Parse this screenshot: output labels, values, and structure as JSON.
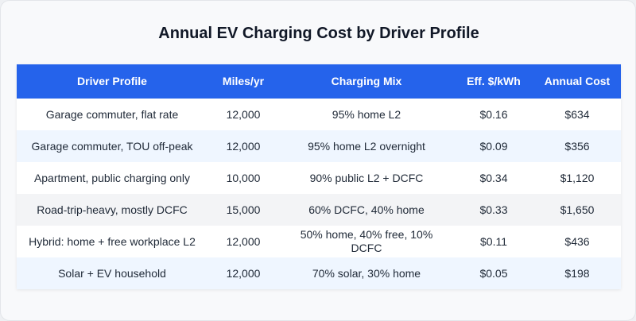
{
  "title": "Annual EV Charging Cost by Driver Profile",
  "colors": {
    "header": "#2563eb",
    "row_alt": "#eff6ff",
    "row_highlight": "#f3f4f6"
  },
  "chart_data": {
    "type": "table",
    "title": "Annual EV Charging Cost by Driver Profile",
    "columns": [
      "Driver Profile",
      "Miles/yr",
      "Charging Mix",
      "Eff. $/kWh",
      "Annual Cost"
    ],
    "rows": [
      [
        "Garage commuter, flat rate",
        "12,000",
        "95% home L2",
        "$0.16",
        "$634"
      ],
      [
        "Garage commuter, TOU off-peak",
        "12,000",
        "95% home L2 overnight",
        "$0.09",
        "$356"
      ],
      [
        "Apartment, public charging only",
        "10,000",
        "90% public L2 + DCFC",
        "$0.34",
        "$1,120"
      ],
      [
        "Road-trip-heavy, mostly DCFC",
        "15,000",
        "60% DCFC, 40% home",
        "$0.33",
        "$1,650"
      ],
      [
        "Hybrid: home + free workplace L2",
        "12,000",
        "50% home, 40% free, 10% DCFC",
        "$0.11",
        "$436"
      ],
      [
        "Solar + EV household",
        "12,000",
        "70% solar, 30% home",
        "$0.05",
        "$198"
      ]
    ]
  }
}
